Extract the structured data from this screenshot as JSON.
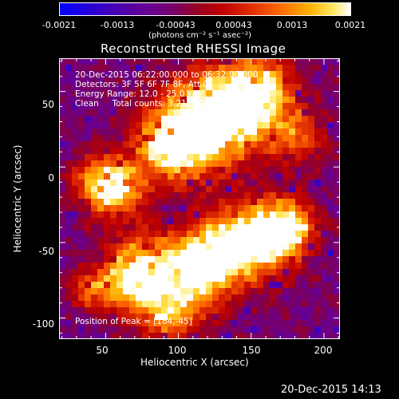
{
  "colorbar": {
    "ticks": [
      "-0.0021",
      "-0.0013",
      "-0.00043",
      "0.00043",
      "0.0013",
      "0.0021"
    ],
    "units": "(photons cm⁻² s⁻¹ asec⁻²)"
  },
  "image": {
    "title": "Reconstructed RHESSI Image",
    "info_lines": [
      "20-Dec-2015 06:22:00.000 to 06:32:00.000",
      "Detectors: 3F 5F 6F 7F 8F, Att 0",
      "Energy Range: 12.0 - 25.0 keV",
      "Clean     Total counts: 3.21E+04"
    ],
    "peak_label": "Position of Peak = [184,-45]",
    "xlabel": "Heliocentric X (arcsec)",
    "ylabel": "Heliocentric Y (arcsec)",
    "xticks": [
      "50",
      "100",
      "150",
      "200"
    ],
    "yticks": [
      "50",
      "0",
      "-50",
      "-100"
    ]
  },
  "footer": {
    "timestamp": "20-Dec-2015 14:13"
  }
}
